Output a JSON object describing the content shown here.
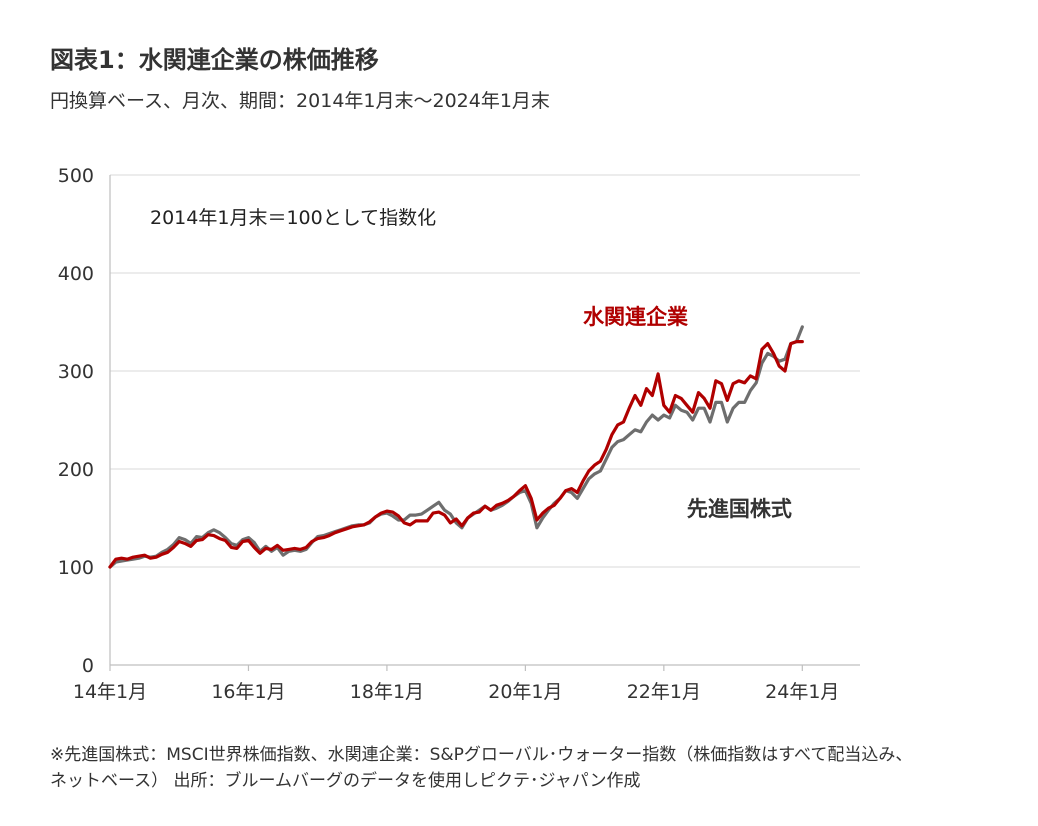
{
  "header": {
    "title": "図表1：水関連企業の株価推移",
    "subtitle": "円換算ベース、月次、期間：2014年1月末～2024年1月末"
  },
  "footnote": {
    "line1": "※先進国株式：MSCI世界株価指数、水関連企業：S&Pグローバル･ウォーター指数（株価指数はすべて配当込み、",
    "line2": "ネットベース） 出所：ブルームバーグのデータを使用しピクテ･ジャパン作成"
  },
  "chart_data": {
    "type": "line",
    "annotation": "2014年1月末＝100として指数化",
    "ylim": [
      0,
      500
    ],
    "yticks": [
      0,
      100,
      200,
      300,
      400,
      500
    ],
    "xlim": [
      0,
      130
    ],
    "xticks": [
      {
        "label": "14年1月",
        "t": 0
      },
      {
        "label": "16年1月",
        "t": 24
      },
      {
        "label": "18年1月",
        "t": 48
      },
      {
        "label": "20年1月",
        "t": 72
      },
      {
        "label": "22年1月",
        "t": 96
      },
      {
        "label": "24年1月",
        "t": 120
      }
    ],
    "grid": true,
    "colors": {
      "water": "#b00000",
      "developed": "#6e6e6e",
      "grid": "#d9d9d9",
      "axis": "#bfbfbf"
    },
    "series": [
      {
        "name": "水関連企業",
        "key": "water",
        "values": [
          100,
          108,
          109,
          108,
          110,
          111,
          112,
          109,
          110,
          113,
          115,
          120,
          126,
          124,
          121,
          127,
          128,
          133,
          132,
          129,
          127,
          120,
          119,
          126,
          127,
          120,
          114,
          119,
          118,
          122,
          117,
          118,
          119,
          118,
          120,
          126,
          129,
          130,
          132,
          135,
          137,
          139,
          141,
          142,
          143,
          146,
          151,
          155,
          157,
          156,
          152,
          145,
          143,
          147,
          147,
          147,
          155,
          156,
          153,
          145,
          149,
          142,
          150,
          155,
          156,
          162,
          158,
          163,
          165,
          168,
          172,
          178,
          183,
          170,
          148,
          155,
          160,
          163,
          170,
          178,
          180,
          176,
          188,
          198,
          204,
          208,
          220,
          235,
          245,
          248,
          262,
          275,
          265,
          282,
          275,
          297,
          265,
          258,
          275,
          272,
          265,
          258,
          278,
          272,
          262,
          290,
          287,
          270,
          287,
          290,
          288,
          295,
          292,
          322,
          328,
          318,
          305,
          300,
          328,
          330,
          330
        ]
      },
      {
        "name": "先進国株式",
        "key": "developed",
        "values": [
          100,
          105,
          106,
          107,
          108,
          109,
          111,
          110,
          111,
          115,
          118,
          123,
          130,
          128,
          124,
          131,
          130,
          135,
          138,
          135,
          130,
          124,
          122,
          128,
          130,
          125,
          116,
          121,
          116,
          120,
          112,
          116,
          117,
          116,
          118,
          125,
          131,
          132,
          134,
          136,
          138,
          140,
          142,
          143,
          143,
          145,
          151,
          154,
          155,
          152,
          148,
          148,
          153,
          153,
          154,
          158,
          162,
          166,
          158,
          154,
          145,
          140,
          150,
          154,
          158,
          162,
          158,
          160,
          163,
          167,
          172,
          176,
          178,
          165,
          140,
          150,
          158,
          165,
          170,
          178,
          176,
          170,
          180,
          190,
          195,
          198,
          210,
          222,
          228,
          230,
          235,
          240,
          238,
          248,
          255,
          250,
          255,
          252,
          265,
          260,
          258,
          250,
          262,
          262,
          248,
          268,
          268,
          248,
          262,
          268,
          268,
          280,
          288,
          308,
          318,
          315,
          310,
          312,
          328,
          330,
          345
        ]
      }
    ],
    "series_labels": [
      {
        "key": "water",
        "text": "水関連企業",
        "x": 82,
        "y": 348
      },
      {
        "key": "developed",
        "text": "先進国株式",
        "x": 100,
        "y": 152
      }
    ]
  }
}
